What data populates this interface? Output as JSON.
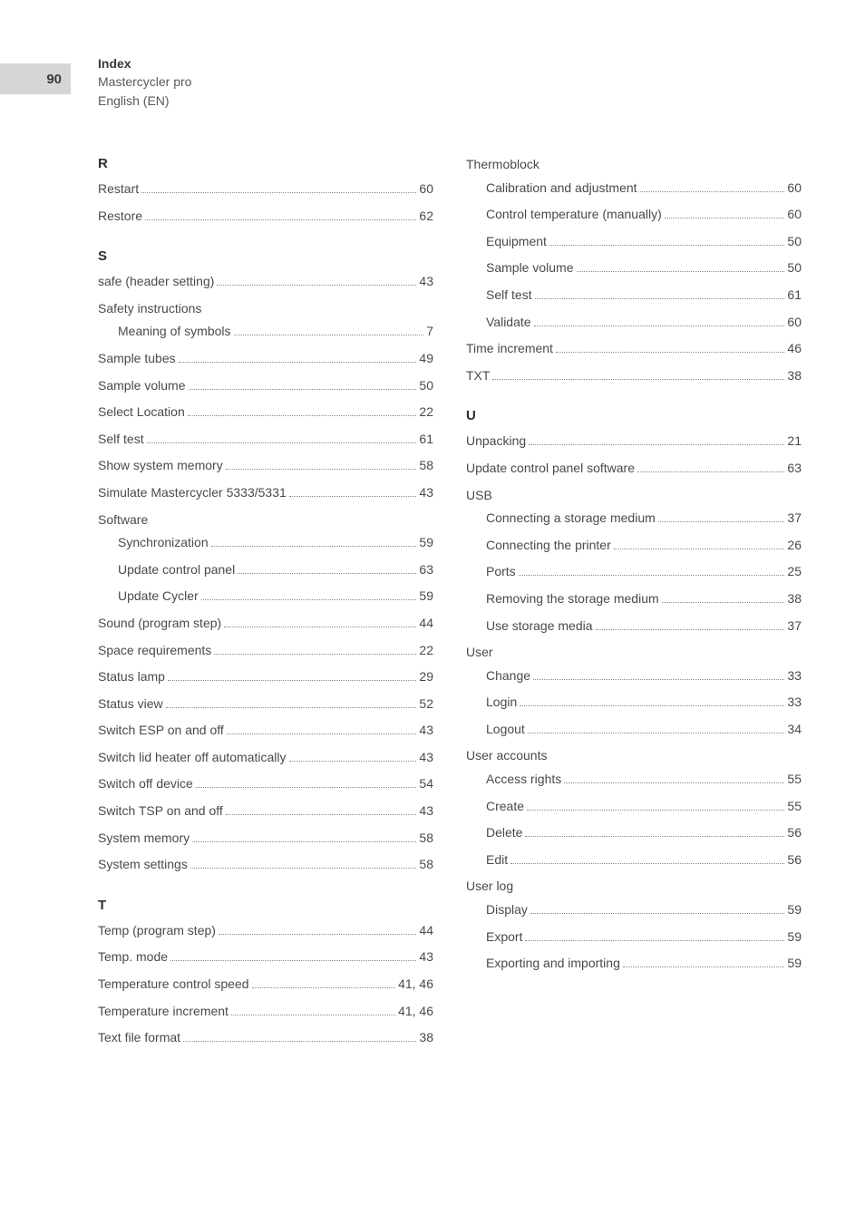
{
  "page_number": "90",
  "header": {
    "title": "Index",
    "subtitle1": "Mastercycler pro",
    "subtitle2": "English (EN)"
  },
  "left_column": [
    {
      "type": "letter",
      "text": "R"
    },
    {
      "type": "entry",
      "label": "Restart",
      "page": "60"
    },
    {
      "type": "entry",
      "label": "Restore",
      "page": "62"
    },
    {
      "type": "letter",
      "text": "S"
    },
    {
      "type": "entry",
      "label": "safe (header setting)",
      "page": "43"
    },
    {
      "type": "heading",
      "label": "Safety instructions"
    },
    {
      "type": "sub",
      "label": "Meaning of symbols",
      "page": "7"
    },
    {
      "type": "entry",
      "label": "Sample tubes",
      "page": "49"
    },
    {
      "type": "entry",
      "label": "Sample volume",
      "page": "50"
    },
    {
      "type": "entry",
      "label": "Select Location",
      "page": "22"
    },
    {
      "type": "entry",
      "label": "Self test",
      "page": "61"
    },
    {
      "type": "entry",
      "label": "Show system memory",
      "page": "58"
    },
    {
      "type": "entry",
      "label": "Simulate Mastercycler 5333/5331",
      "page": "43"
    },
    {
      "type": "heading",
      "label": "Software"
    },
    {
      "type": "sub",
      "label": "Synchronization",
      "page": "59"
    },
    {
      "type": "sub",
      "label": "Update control panel",
      "page": "63"
    },
    {
      "type": "sub",
      "label": "Update Cycler",
      "page": "59"
    },
    {
      "type": "entry",
      "label": "Sound (program step)",
      "page": "44"
    },
    {
      "type": "entry",
      "label": "Space requirements",
      "page": "22"
    },
    {
      "type": "entry",
      "label": "Status lamp",
      "page": "29"
    },
    {
      "type": "entry",
      "label": "Status view",
      "page": "52"
    },
    {
      "type": "entry",
      "label": "Switch ESP on and off",
      "page": "43"
    },
    {
      "type": "entry",
      "label": "Switch lid heater off automatically",
      "page": "43"
    },
    {
      "type": "entry",
      "label": "Switch off device",
      "page": "54"
    },
    {
      "type": "entry",
      "label": "Switch TSP on and off",
      "page": "43"
    },
    {
      "type": "entry",
      "label": "System memory",
      "page": "58"
    },
    {
      "type": "entry",
      "label": "System settings",
      "page": "58"
    },
    {
      "type": "letter",
      "text": "T"
    },
    {
      "type": "entry",
      "label": "Temp (program step)",
      "page": "44"
    },
    {
      "type": "entry",
      "label": "Temp. mode",
      "page": "43"
    },
    {
      "type": "entry",
      "label": "Temperature control speed",
      "page": "41, 46"
    },
    {
      "type": "entry",
      "label": "Temperature increment",
      "page": "41, 46"
    },
    {
      "type": "entry",
      "label": "Text file format",
      "page": "38"
    }
  ],
  "right_column": [
    {
      "type": "heading",
      "label": "Thermoblock"
    },
    {
      "type": "sub",
      "label": "Calibration and adjustment",
      "page": "60"
    },
    {
      "type": "sub",
      "label": "Control temperature (manually)",
      "page": "60"
    },
    {
      "type": "sub",
      "label": "Equipment",
      "page": "50"
    },
    {
      "type": "sub",
      "label": "Sample volume",
      "page": "50"
    },
    {
      "type": "sub",
      "label": "Self test",
      "page": "61"
    },
    {
      "type": "sub",
      "label": "Validate",
      "page": "60"
    },
    {
      "type": "entry",
      "label": "Time increment",
      "page": "46"
    },
    {
      "type": "entry",
      "label": "TXT",
      "page": "38"
    },
    {
      "type": "letter",
      "text": "U"
    },
    {
      "type": "entry",
      "label": "Unpacking",
      "page": "21"
    },
    {
      "type": "entry",
      "label": "Update control panel software",
      "page": "63"
    },
    {
      "type": "heading",
      "label": "USB"
    },
    {
      "type": "sub",
      "label": "Connecting a storage medium",
      "page": "37"
    },
    {
      "type": "sub",
      "label": "Connecting the printer",
      "page": "26"
    },
    {
      "type": "sub",
      "label": "Ports",
      "page": "25"
    },
    {
      "type": "sub",
      "label": "Removing the storage medium",
      "page": "38"
    },
    {
      "type": "sub",
      "label": "Use storage media",
      "page": "37"
    },
    {
      "type": "heading",
      "label": "User"
    },
    {
      "type": "sub",
      "label": "Change",
      "page": "33"
    },
    {
      "type": "sub",
      "label": "Login",
      "page": "33"
    },
    {
      "type": "sub",
      "label": "Logout",
      "page": "34"
    },
    {
      "type": "heading",
      "label": "User accounts"
    },
    {
      "type": "sub",
      "label": "Access rights",
      "page": "55"
    },
    {
      "type": "sub",
      "label": "Create",
      "page": "55"
    },
    {
      "type": "sub",
      "label": "Delete",
      "page": "56"
    },
    {
      "type": "sub",
      "label": "Edit",
      "page": "56"
    },
    {
      "type": "heading",
      "label": "User log"
    },
    {
      "type": "sub",
      "label": "Display",
      "page": "59"
    },
    {
      "type": "sub",
      "label": "Export",
      "page": "59"
    },
    {
      "type": "sub",
      "label": "Exporting and importing",
      "page": "59"
    }
  ]
}
